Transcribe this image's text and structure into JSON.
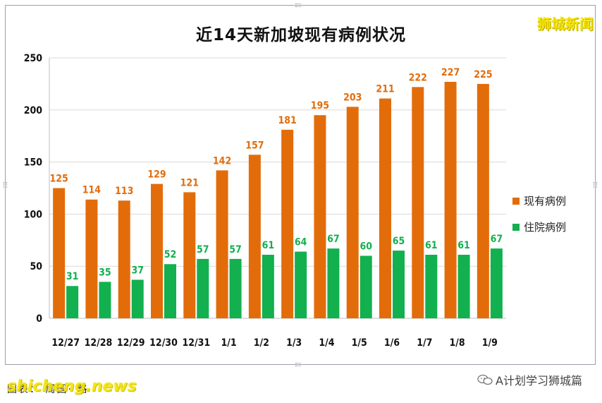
{
  "chart_data": {
    "type": "bar",
    "title": "近14天新加坡现有病例状况",
    "categories": [
      "12/27",
      "12/28",
      "12/29",
      "12/30",
      "12/31",
      "1/1",
      "1/2",
      "1/3",
      "1/4",
      "1/5",
      "1/6",
      "1/7",
      "1/8",
      "1/9"
    ],
    "series": [
      {
        "name": "现有病例",
        "color": "#e36c0a",
        "values": [
          125,
          114,
          113,
          129,
          121,
          142,
          157,
          181,
          195,
          203,
          211,
          222,
          227,
          225
        ]
      },
      {
        "name": "住院病例",
        "color": "#12b04f",
        "values": [
          31,
          35,
          37,
          52,
          57,
          57,
          61,
          64,
          67,
          60,
          65,
          61,
          61,
          67
        ]
      }
    ],
    "yticks": [
      0,
      50,
      100,
      150,
      200,
      250
    ],
    "ylim": [
      0,
      250
    ],
    "grid": true,
    "legend_position": "right"
  },
  "brand": "狮城新闻",
  "footer": {
    "source_partial": "图表：  周国·  略",
    "watermark": "shicheng.news",
    "wechat_account": "A计划学习狮城篇",
    "wechat_icon": "wechat-icon"
  }
}
